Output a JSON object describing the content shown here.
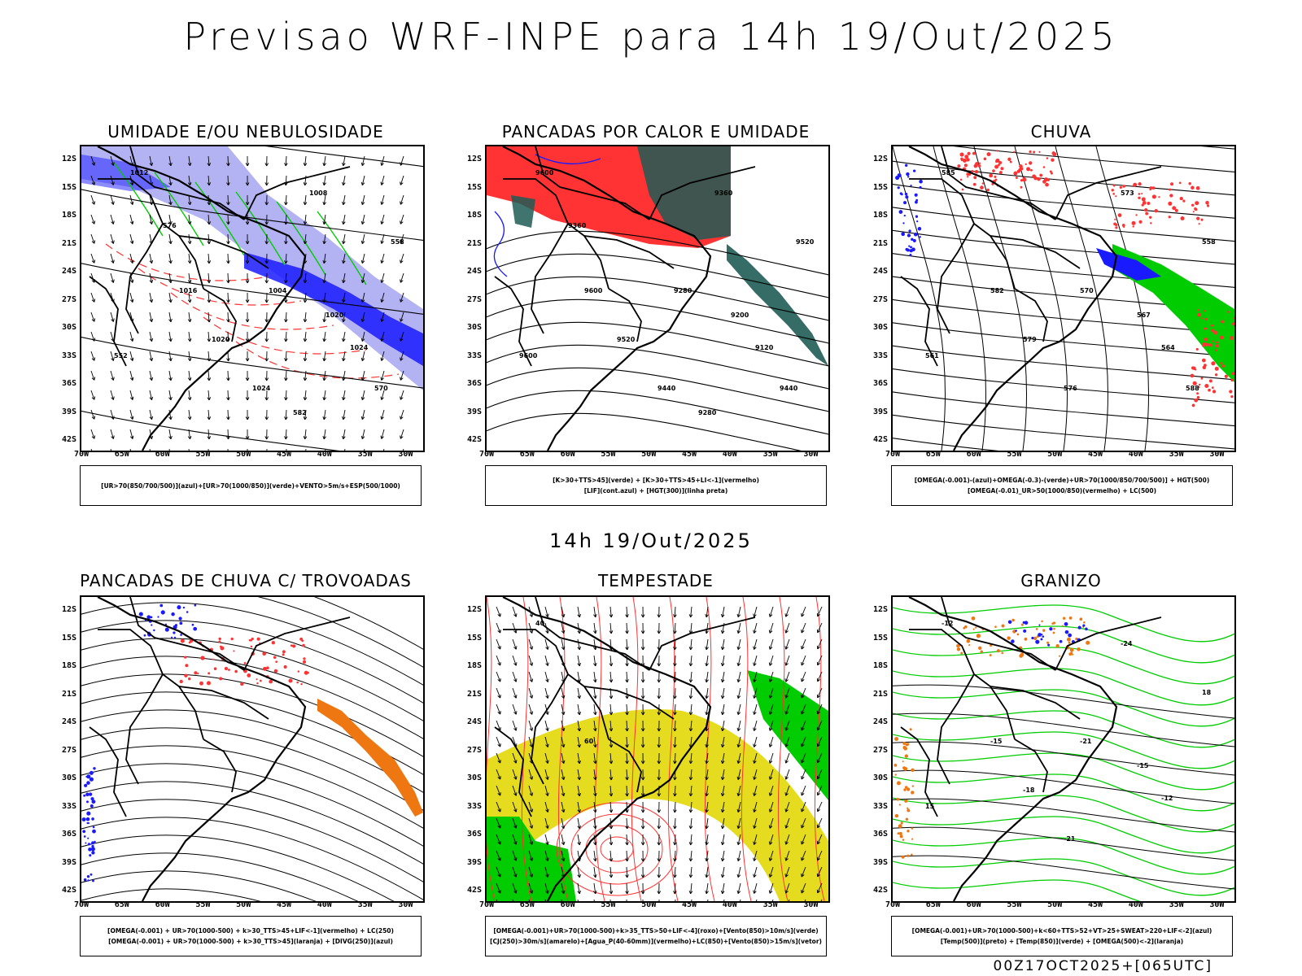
{
  "header": {
    "title": "Previsao WRF-INPE  para 14h 19/Out/2025"
  },
  "middle": {
    "title": "14h 19/Out/2025"
  },
  "footer": {
    "stamp": "00Z17OCT2025+[065UTC]"
  },
  "axes": {
    "lat_ticks": [
      "12S",
      "15S",
      "18S",
      "21S",
      "24S",
      "27S",
      "30S",
      "33S",
      "36S",
      "39S",
      "42S"
    ],
    "lon_ticks": [
      "70W",
      "65W",
      "60W",
      "55W",
      "50W",
      "45W",
      "40W",
      "35W",
      "30W"
    ]
  },
  "colors": {
    "blue": "#1a1aff",
    "light_blue": "#9a9af0",
    "green": "#00cc00",
    "red": "#ff3333",
    "dark_teal": "#1f5c55",
    "yellow": "#e6dc1f",
    "orange": "#ee7711",
    "magenta": "#cc00cc"
  },
  "panels": [
    {
      "title": "UMIDADE E/OU NEBULOSIDADE",
      "legend": [
        "[UR>70(850/700/500)](azul)+[UR>70(1000/850)](verde)+VENTO>5m/s+ESP(500/1000)"
      ],
      "labels": [
        "1012",
        "1016",
        "1020",
        "1024",
        "1008",
        "1004",
        "1020",
        "1024",
        "552",
        "558",
        "570",
        "576",
        "582"
      ]
    },
    {
      "title": "PANCADAS POR CALOR E UMIDADE",
      "legend": [
        "[K>30+TTS>45](verde) + [K>30+TTS>45+LI<-1](vermelho)",
        "[LIF](cont.azul) + [HGT(300)](linha preta)"
      ],
      "labels": [
        "9600",
        "9600",
        "9520",
        "9440",
        "9360",
        "9280",
        "9200",
        "9120",
        "9600",
        "9520",
        "9440",
        "9360",
        "9280"
      ]
    },
    {
      "title": "CHUVA",
      "legend": [
        "[OMEGA(-0.001)-(azul)+OMEGA(-0.3)-(verde)+UR>70(1000/850/700/500)] + HGT(500)",
        "[OMEGA(-0.01)_UR>50(1000/850)(vermelho) + LC(500)"
      ],
      "labels": [
        "585",
        "582",
        "579",
        "576",
        "573",
        "570",
        "567",
        "564",
        "561",
        "558",
        "588"
      ]
    },
    {
      "title": "PANCADAS DE CHUVA C/ TROVOADAS",
      "legend": [
        "[OMEGA(-0.001) + UR>70(1000-500) + k>30_TTS>45+LIF<-1](vermelho) + LC(250)",
        "[OMEGA(-0.001) + UR>70(1000-500) + k>30_TTS>45](laranja) + [DIVG(250)](azul)"
      ],
      "labels": []
    },
    {
      "title": "TEMPESTADE",
      "legend": [
        "[OMEGA(-0.001)+UR>70(1000-500)+k>35_TTS>50+LIF<-4](roxo)+[Vento(850)>10m/s](verde)",
        "[CJ(250)>30m/s](amarelo)+[Agua_P(40-60mm)](vermelho)+LC(850)+[Vento(850)>15m/s](vetor)"
      ],
      "labels": [
        "40",
        "60"
      ]
    },
    {
      "title": "GRANIZO",
      "legend": [
        "[OMEGA(-0.001)+UR>70(1000-500)+k<60+TTS>52+VT>25+SWEAT>220+LIF<-2](azul)",
        "[Temp(500)](preto) + [Temp(850)](verde) + [OMEGA(500)<-2](laranja)"
      ],
      "labels": [
        "-12",
        "-15",
        "-18",
        "-21",
        "-24",
        "-21",
        "-15",
        "-12",
        "15",
        "18"
      ]
    }
  ]
}
